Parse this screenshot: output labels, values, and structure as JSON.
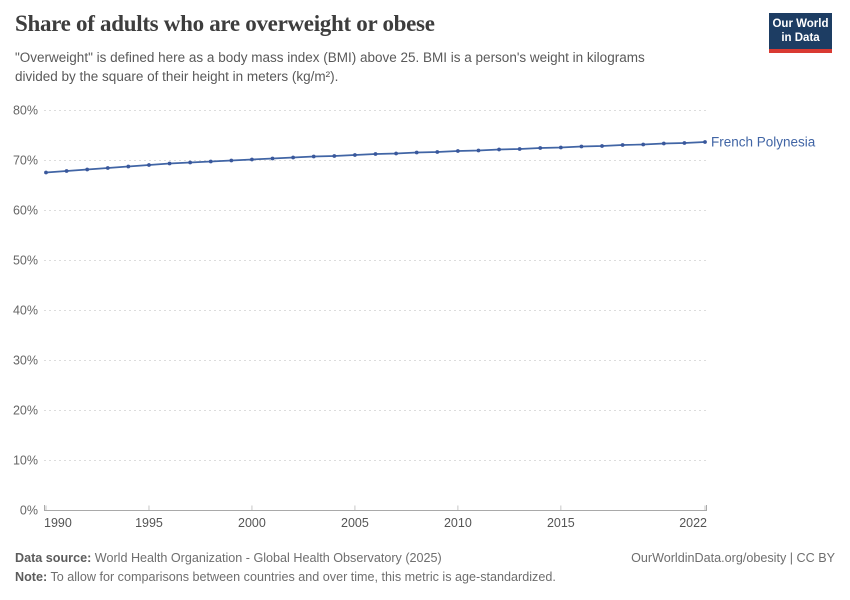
{
  "header": {
    "title": "Share of adults who are overweight or obese",
    "subtitle": "\"Overweight\" is defined here as a body mass index (BMI) above 25. BMI is a person's weight in kilograms\ndivided by the square of their height in meters (kg/m²)."
  },
  "logo": {
    "line1": "Our World",
    "line2": "in Data",
    "bg_color": "#1d3d63",
    "accent_color": "#d93a32"
  },
  "chart_data": {
    "type": "line",
    "title": "Share of adults who are overweight or obese",
    "xlabel": "",
    "ylabel": "",
    "xlim": [
      1990,
      2022
    ],
    "ylim": [
      0,
      80
    ],
    "grid": "horizontal-dashed",
    "legend_position": "end-of-line-label",
    "x_ticks": [
      1990,
      1995,
      2000,
      2005,
      2010,
      2015,
      2022
    ],
    "x_tick_labels": [
      "1990",
      "1995",
      "2000",
      "2005",
      "2010",
      "2015",
      "2022"
    ],
    "y_ticks": [
      0,
      10,
      20,
      30,
      40,
      50,
      60,
      70,
      80
    ],
    "y_tick_labels": [
      "0%",
      "10%",
      "20%",
      "30%",
      "40%",
      "50%",
      "60%",
      "70%",
      "80%"
    ],
    "series": [
      {
        "name": "French Polynesia",
        "color": "#4165a5",
        "dot_color": "#3a589c",
        "x": [
          1990,
          1991,
          1992,
          1993,
          1994,
          1995,
          1996,
          1997,
          1998,
          1999,
          2000,
          2001,
          2002,
          2003,
          2004,
          2005,
          2006,
          2007,
          2008,
          2009,
          2010,
          2011,
          2012,
          2013,
          2014,
          2015,
          2016,
          2017,
          2018,
          2019,
          2020,
          2021,
          2022
        ],
        "values": [
          67.5,
          67.8,
          68.1,
          68.4,
          68.7,
          69.0,
          69.3,
          69.5,
          69.7,
          69.9,
          70.1,
          70.3,
          70.5,
          70.7,
          70.8,
          71.0,
          71.2,
          71.3,
          71.5,
          71.6,
          71.8,
          71.9,
          72.1,
          72.2,
          72.4,
          72.5,
          72.7,
          72.8,
          73.0,
          73.1,
          73.3,
          73.4,
          73.6
        ]
      }
    ]
  },
  "footer": {
    "datasource_label": "Data source:",
    "datasource_text": " World Health Organization - Global Health Observatory (2025)",
    "note_label": "Note:",
    "note_text": " To allow for comparisons between countries and over time, this metric is age-standardized.",
    "credit": "OurWorldinData.org/obesity | CC BY"
  }
}
